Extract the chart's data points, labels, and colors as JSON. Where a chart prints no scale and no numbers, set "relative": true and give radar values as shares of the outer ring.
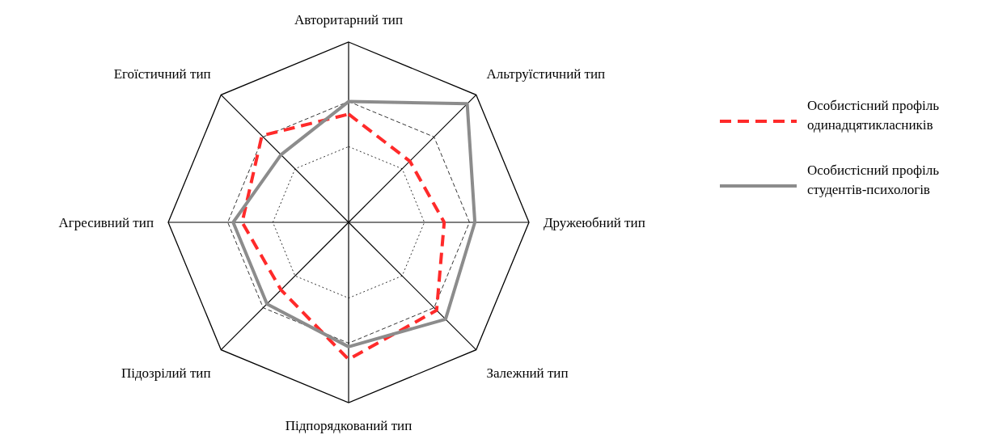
{
  "chart_data": {
    "type": "radar",
    "relative": true,
    "grid": true,
    "legend": "right",
    "categories": [
      "Авторитарний тип",
      "Альтруїстичний тип",
      "Дружеюбний тип",
      "Залежний тип",
      "Підпорядкований тип",
      "Підозрілий тип",
      "Агресивний тип",
      "Егоїстичний тип"
    ],
    "series": [
      {
        "name": "Особистісний профіль одинадцятикласників",
        "color": "#ff2a2a",
        "line_style": "dashed",
        "values": [
          0.6,
          0.48,
          0.53,
          0.69,
          0.76,
          0.53,
          0.59,
          0.68
        ]
      },
      {
        "name": "Особистісний профіль студентів-психологів",
        "color": "#8c8c8c",
        "line_style": "solid",
        "values": [
          0.67,
          0.93,
          0.7,
          0.76,
          0.69,
          0.64,
          0.64,
          0.53
        ]
      }
    ]
  }
}
